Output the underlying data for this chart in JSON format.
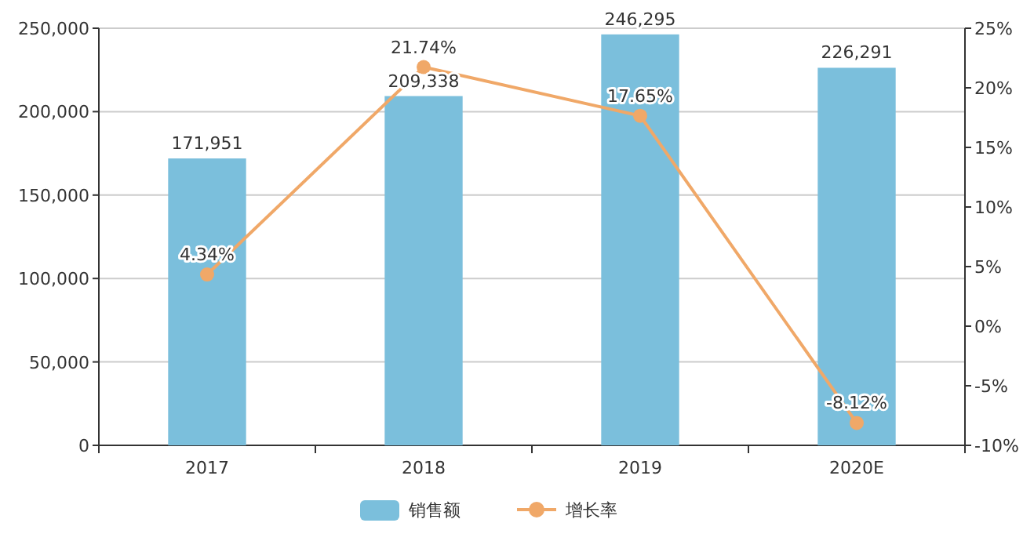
{
  "chart_data": {
    "type": "bar",
    "categories": [
      "2017",
      "2018",
      "2019",
      "2020E"
    ],
    "series": [
      {
        "name": "销售额",
        "color": "#7bbfdc",
        "values": [
          171951,
          209338,
          246295,
          226291
        ],
        "value_labels": [
          "171,951",
          "209,338",
          "246,295",
          "226,291"
        ]
      },
      {
        "name": "增长率",
        "type": "line",
        "axis": "y2",
        "color": "#f0a868",
        "marker": "circle",
        "values": [
          4.34,
          21.74,
          17.65,
          -8.12
        ],
        "value_labels": [
          "4.34%",
          "21.74%",
          "17.65%",
          "-8.12%"
        ]
      }
    ],
    "ylim": [
      0,
      250000
    ],
    "yticks": [
      0,
      {
        "value": 50000,
        "label": "50,000"
      },
      {
        "value": 100000,
        "label": "100,000"
      },
      {
        "value": 150000,
        "label": "150,000"
      },
      {
        "value": 200000,
        "label": "200,000"
      },
      {
        "value": 250000,
        "label": "250,000"
      }
    ],
    "y2lim": [
      -10,
      25
    ],
    "y2ticks": [
      {
        "value": -10,
        "label": "-10%"
      },
      {
        "value": -5,
        "label": "-5%"
      },
      {
        "value": 0,
        "label": "0%"
      },
      {
        "value": 5,
        "label": "5%"
      },
      {
        "value": 10,
        "label": "10%"
      },
      {
        "value": 15,
        "label": "15%"
      },
      {
        "value": 20,
        "label": "20%"
      },
      {
        "value": 25,
        "label": "25%"
      }
    ],
    "grid": "y",
    "legend": "bottom"
  }
}
